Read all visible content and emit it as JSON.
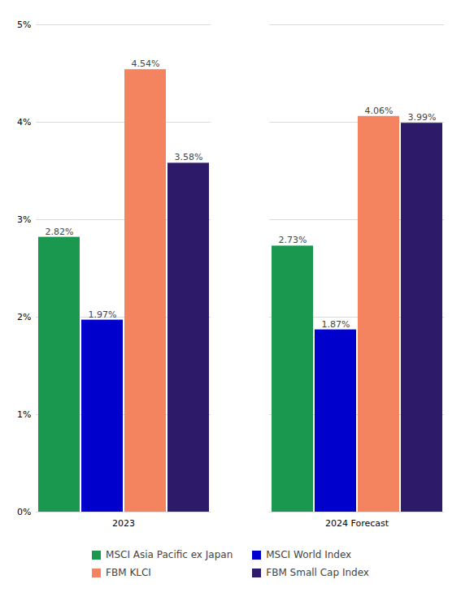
{
  "chart_data": {
    "type": "bar",
    "categories": [
      "2023",
      "2024 Forecast"
    ],
    "series": [
      {
        "name": "MSCI Asia Pacific ex Japan",
        "color": "#1a9850",
        "values": [
          2.82,
          2.73
        ],
        "value_labels": [
          "2.82%",
          "2.73%"
        ]
      },
      {
        "name": "MSCI World Index",
        "color": "#0000cc",
        "values": [
          1.97,
          1.87
        ],
        "value_labels": [
          "1.97%",
          "1.87%"
        ]
      },
      {
        "name": "FBM KLCI",
        "color": "#f4845f",
        "values": [
          4.54,
          4.06
        ],
        "value_labels": [
          "4.54%",
          "4.06%"
        ]
      },
      {
        "name": "FBM Small Cap Index",
        "color": "#2d1b69",
        "values": [
          3.58,
          3.99
        ],
        "value_labels": [
          "3.58%",
          "3.99%"
        ]
      }
    ],
    "ylim": [
      0,
      5
    ],
    "yticks": [
      {
        "value": 0,
        "label": "0%"
      },
      {
        "value": 1,
        "label": "1%"
      },
      {
        "value": 2,
        "label": "2%"
      },
      {
        "value": 3,
        "label": "3%"
      },
      {
        "value": 4,
        "label": "4%"
      },
      {
        "value": 5,
        "label": "5%"
      }
    ],
    "grid": true,
    "data_labels": true,
    "legend": "bottom"
  }
}
